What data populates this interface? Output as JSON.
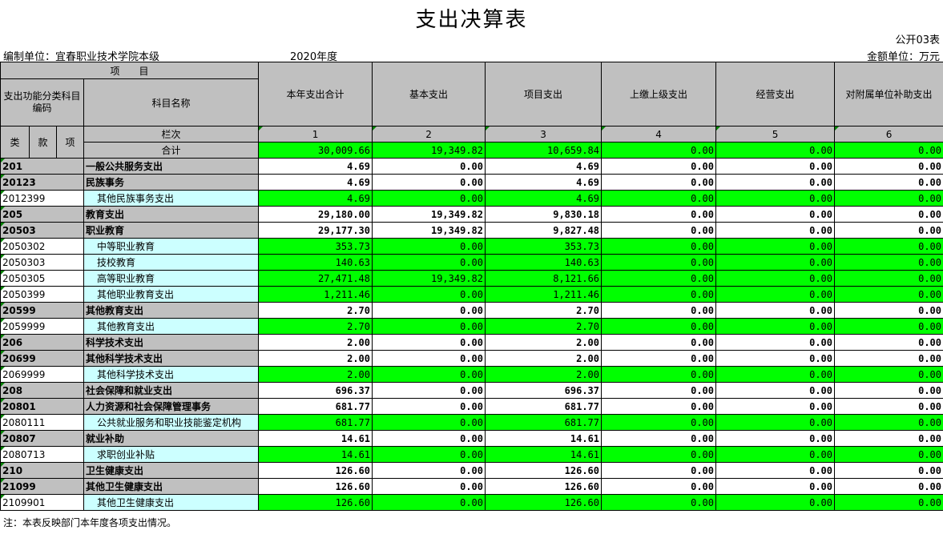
{
  "title": "支出决算表",
  "form_no": "公开03表",
  "org": "编制单位：宜春职业技术学院本级",
  "year": "2020年度",
  "unit": "金额单位：万元",
  "header": {
    "item": "项　　目",
    "code": "支出功能分类科目编码",
    "name": "科目名称",
    "lei": "类",
    "kuan": "款",
    "xiang": "项",
    "lanci": "栏次",
    "total_label": "合计",
    "columns": [
      "本年支出合计",
      "基本支出",
      "项目支出",
      "上缴上级支出",
      "经营支出",
      "对附属单位补助支出"
    ],
    "col_nums": [
      "1",
      "2",
      "3",
      "4",
      "5",
      "6"
    ]
  },
  "total": [
    "30,009.66",
    "19,349.82",
    "10,659.84",
    "0.00",
    "0.00",
    "0.00"
  ],
  "rows": [
    {
      "code": "201",
      "name": "一般公共服务支出",
      "level": "sum",
      "values": [
        "4.69",
        "0.00",
        "4.69",
        "0.00",
        "0.00",
        "0.00"
      ]
    },
    {
      "code": "20123",
      "name": "民族事务",
      "level": "sum",
      "values": [
        "4.69",
        "0.00",
        "4.69",
        "0.00",
        "0.00",
        "0.00"
      ]
    },
    {
      "code": "2012399",
      "name": "其他民族事务支出",
      "level": "detail",
      "values": [
        "4.69",
        "0.00",
        "4.69",
        "0.00",
        "0.00",
        "0.00"
      ]
    },
    {
      "code": "205",
      "name": "教育支出",
      "level": "sum",
      "values": [
        "29,180.00",
        "19,349.82",
        "9,830.18",
        "0.00",
        "0.00",
        "0.00"
      ]
    },
    {
      "code": "20503",
      "name": "职业教育",
      "level": "sum",
      "values": [
        "29,177.30",
        "19,349.82",
        "9,827.48",
        "0.00",
        "0.00",
        "0.00"
      ]
    },
    {
      "code": "2050302",
      "name": "中等职业教育",
      "level": "detail",
      "values": [
        "353.73",
        "0.00",
        "353.73",
        "0.00",
        "0.00",
        "0.00"
      ]
    },
    {
      "code": "2050303",
      "name": "技校教育",
      "level": "detail",
      "values": [
        "140.63",
        "0.00",
        "140.63",
        "0.00",
        "0.00",
        "0.00"
      ]
    },
    {
      "code": "2050305",
      "name": "高等职业教育",
      "level": "detail",
      "values": [
        "27,471.48",
        "19,349.82",
        "8,121.66",
        "0.00",
        "0.00",
        "0.00"
      ]
    },
    {
      "code": "2050399",
      "name": "其他职业教育支出",
      "level": "detail",
      "values": [
        "1,211.46",
        "0.00",
        "1,211.46",
        "0.00",
        "0.00",
        "0.00"
      ]
    },
    {
      "code": "20599",
      "name": "其他教育支出",
      "level": "sum",
      "values": [
        "2.70",
        "0.00",
        "2.70",
        "0.00",
        "0.00",
        "0.00"
      ]
    },
    {
      "code": "2059999",
      "name": "其他教育支出",
      "level": "detail",
      "values": [
        "2.70",
        "0.00",
        "2.70",
        "0.00",
        "0.00",
        "0.00"
      ]
    },
    {
      "code": "206",
      "name": "科学技术支出",
      "level": "sum",
      "values": [
        "2.00",
        "0.00",
        "2.00",
        "0.00",
        "0.00",
        "0.00"
      ]
    },
    {
      "code": "20699",
      "name": "其他科学技术支出",
      "level": "sum",
      "values": [
        "2.00",
        "0.00",
        "2.00",
        "0.00",
        "0.00",
        "0.00"
      ]
    },
    {
      "code": "2069999",
      "name": "其他科学技术支出",
      "level": "detail",
      "values": [
        "2.00",
        "0.00",
        "2.00",
        "0.00",
        "0.00",
        "0.00"
      ]
    },
    {
      "code": "208",
      "name": "社会保障和就业支出",
      "level": "sum",
      "values": [
        "696.37",
        "0.00",
        "696.37",
        "0.00",
        "0.00",
        "0.00"
      ]
    },
    {
      "code": "20801",
      "name": "人力资源和社会保障管理事务",
      "level": "sum",
      "values": [
        "681.77",
        "0.00",
        "681.77",
        "0.00",
        "0.00",
        "0.00"
      ]
    },
    {
      "code": "2080111",
      "name": "公共就业服务和职业技能鉴定机构",
      "level": "detail",
      "values": [
        "681.77",
        "0.00",
        "681.77",
        "0.00",
        "0.00",
        "0.00"
      ]
    },
    {
      "code": "20807",
      "name": "就业补助",
      "level": "sum",
      "values": [
        "14.61",
        "0.00",
        "14.61",
        "0.00",
        "0.00",
        "0.00"
      ]
    },
    {
      "code": "2080713",
      "name": "求职创业补贴",
      "level": "detail",
      "values": [
        "14.61",
        "0.00",
        "14.61",
        "0.00",
        "0.00",
        "0.00"
      ]
    },
    {
      "code": "210",
      "name": "卫生健康支出",
      "level": "sum",
      "values": [
        "126.60",
        "0.00",
        "126.60",
        "0.00",
        "0.00",
        "0.00"
      ]
    },
    {
      "code": "21099",
      "name": "其他卫生健康支出",
      "level": "sum",
      "values": [
        "126.60",
        "0.00",
        "126.60",
        "0.00",
        "0.00",
        "0.00"
      ]
    },
    {
      "code": "2109901",
      "name": "其他卫生健康支出",
      "level": "detail",
      "values": [
        "126.60",
        "0.00",
        "126.60",
        "0.00",
        "0.00",
        "0.00"
      ]
    }
  ],
  "note": "注：本表反映部门本年度各项支出情况。",
  "colors": {
    "header": "#c0c0c0",
    "value_cell": "#00ff00",
    "detail_name": "#ccffff"
  }
}
